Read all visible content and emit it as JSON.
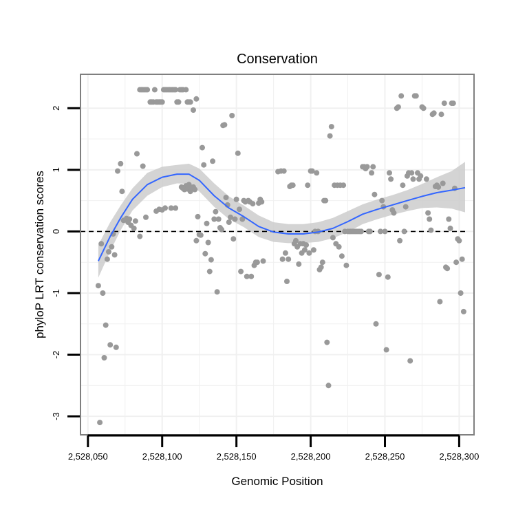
{
  "chart_data": {
    "type": "scatter",
    "title": "Conservation",
    "xlabel": "Genomic Position",
    "ylabel": "phyloP LRT conservation scores",
    "xlim": [
      2528045,
      2528310
    ],
    "ylim": [
      -3.3,
      2.55
    ],
    "x_ticks": [
      {
        "value": 2528050,
        "label": "2,528,050"
      },
      {
        "value": 2528100,
        "label": "2,528,100"
      },
      {
        "value": 2528150,
        "label": "2,528,150"
      },
      {
        "value": 2528200,
        "label": "2,528,200"
      },
      {
        "value": 2528250,
        "label": "2,528,250"
      },
      {
        "value": 2528300,
        "label": "2,528,300"
      }
    ],
    "y_ticks": [
      {
        "value": 2,
        "label": "2"
      },
      {
        "value": 1,
        "label": "1"
      },
      {
        "value": 0,
        "label": "0"
      },
      {
        "value": -1,
        "label": "-1"
      },
      {
        "value": -2,
        "label": "-2"
      },
      {
        "value": -3,
        "label": "-3"
      }
    ],
    "reference_line": {
      "y": 0,
      "style": "dashed"
    },
    "colors": {
      "points": "#999999",
      "smooth": "#3366ff",
      "ribbon": "#cccccc",
      "grid": "#f0f0f0",
      "border": "#7f7f7f"
    },
    "points": [
      [
        2528057,
        -0.88
      ],
      [
        2528058,
        -3.1
      ],
      [
        2528059,
        -0.2
      ],
      [
        2528060,
        -1.0
      ],
      [
        2528061,
        -2.05
      ],
      [
        2528062,
        -1.52
      ],
      [
        2528063,
        -0.45
      ],
      [
        2528064,
        -0.33
      ],
      [
        2528065,
        -1.84
      ],
      [
        2528066,
        -0.25
      ],
      [
        2528067,
        -0.04
      ],
      [
        2528068,
        -0.38
      ],
      [
        2528069,
        -1.88
      ],
      [
        2528070,
        0.98
      ],
      [
        2528072,
        1.1
      ],
      [
        2528073,
        0.65
      ],
      [
        2528074,
        0.18
      ],
      [
        2528076,
        0.21
      ],
      [
        2528077,
        0.15
      ],
      [
        2528078,
        0.2
      ],
      [
        2528079,
        0.1
      ],
      [
        2528081,
        0.05
      ],
      [
        2528082,
        0.17
      ],
      [
        2528083,
        1.26
      ],
      [
        2528085,
        -0.08
      ],
      [
        2528087,
        1.06
      ],
      [
        2528089,
        0.23
      ],
      [
        2528085,
        2.3
      ],
      [
        2528086,
        2.3
      ],
      [
        2528087,
        2.3
      ],
      [
        2528088,
        2.3
      ],
      [
        2528089,
        2.3
      ],
      [
        2528090,
        2.3
      ],
      [
        2528092,
        2.1
      ],
      [
        2528093,
        2.1
      ],
      [
        2528094,
        2.1
      ],
      [
        2528095,
        2.3
      ],
      [
        2528096,
        2.1
      ],
      [
        2528097,
        2.1
      ],
      [
        2528098,
        2.1
      ],
      [
        2528099,
        2.1
      ],
      [
        2528100,
        2.1
      ],
      [
        2528101,
        2.3
      ],
      [
        2528102,
        2.3
      ],
      [
        2528103,
        2.3
      ],
      [
        2528104,
        2.3
      ],
      [
        2528105,
        2.3
      ],
      [
        2528106,
        2.3
      ],
      [
        2528107,
        2.3
      ],
      [
        2528108,
        2.3
      ],
      [
        2528109,
        2.3
      ],
      [
        2528110,
        2.1
      ],
      [
        2528111,
        2.1
      ],
      [
        2528112,
        2.3
      ],
      [
        2528113,
        2.3
      ],
      [
        2528114,
        2.3
      ],
      [
        2528116,
        2.3
      ],
      [
        2528117,
        2.1
      ],
      [
        2528118,
        2.1
      ],
      [
        2528119,
        2.1
      ],
      [
        2528121,
        1.97
      ],
      [
        2528123,
        2.15
      ],
      [
        2528096,
        0.33
      ],
      [
        2528098,
        0.36
      ],
      [
        2528100,
        0.35
      ],
      [
        2528102,
        0.38
      ],
      [
        2528106,
        0.38
      ],
      [
        2528109,
        0.38
      ],
      [
        2528113,
        0.72
      ],
      [
        2528114,
        0.7
      ],
      [
        2528115,
        0.68
      ],
      [
        2528116,
        0.74
      ],
      [
        2528117,
        0.69
      ],
      [
        2528118,
        0.76
      ],
      [
        2528119,
        0.65
      ],
      [
        2528120,
        0.7
      ],
      [
        2528121,
        0.72
      ],
      [
        2528122,
        0.68
      ],
      [
        2528123,
        -0.15
      ],
      [
        2528124,
        0.24
      ],
      [
        2528125,
        -0.05
      ],
      [
        2528126,
        -0.06
      ],
      [
        2528127,
        1.36
      ],
      [
        2528128,
        1.08
      ],
      [
        2528129,
        -0.36
      ],
      [
        2528130,
        0.13
      ],
      [
        2528131,
        -0.18
      ],
      [
        2528132,
        -0.65
      ],
      [
        2528133,
        -0.46
      ],
      [
        2528134,
        1.14
      ],
      [
        2528135,
        0.2
      ],
      [
        2528136,
        0.32
      ],
      [
        2528137,
        -0.98
      ],
      [
        2528138,
        0.2
      ],
      [
        2528139,
        0.06
      ],
      [
        2528140,
        0.03
      ],
      [
        2528141,
        1.72
      ],
      [
        2528142,
        1.73
      ],
      [
        2528143,
        0.55
      ],
      [
        2528144,
        0.43
      ],
      [
        2528145,
        0.15
      ],
      [
        2528146,
        0.23
      ],
      [
        2528147,
        1.88
      ],
      [
        2528148,
        -0.12
      ],
      [
        2528149,
        0.2
      ],
      [
        2528150,
        0.52
      ],
      [
        2528151,
        1.27
      ],
      [
        2528152,
        0.36
      ],
      [
        2528153,
        -0.65
      ],
      [
        2528154,
        0.2
      ],
      [
        2528155,
        0.5
      ],
      [
        2528156,
        0.48
      ],
      [
        2528157,
        -0.73
      ],
      [
        2528158,
        0.5
      ],
      [
        2528159,
        0.48
      ],
      [
        2528160,
        -0.73
      ],
      [
        2528161,
        0.45
      ],
      [
        2528162,
        -0.55
      ],
      [
        2528163,
        -0.5
      ],
      [
        2528164,
        -0.5
      ],
      [
        2528165,
        0.46
      ],
      [
        2528166,
        0.52
      ],
      [
        2528167,
        0.48
      ],
      [
        2528168,
        -0.48
      ],
      [
        2528178,
        0.97
      ],
      [
        2528180,
        0.98
      ],
      [
        2528181,
        -0.45
      ],
      [
        2528182,
        0.98
      ],
      [
        2528183,
        -0.35
      ],
      [
        2528184,
        -0.81
      ],
      [
        2528185,
        -0.45
      ],
      [
        2528186,
        0.73
      ],
      [
        2528187,
        0.75
      ],
      [
        2528188,
        0.75
      ],
      [
        2528189,
        -0.2
      ],
      [
        2528190,
        -0.15
      ],
      [
        2528191,
        -0.25
      ],
      [
        2528192,
        -0.53
      ],
      [
        2528193,
        -0.2
      ],
      [
        2528194,
        -0.35
      ],
      [
        2528195,
        -0.2
      ],
      [
        2528196,
        -0.3
      ],
      [
        2528197,
        -0.22
      ],
      [
        2528198,
        0.75
      ],
      [
        2528199,
        -0.35
      ],
      [
        2528200,
        0.98
      ],
      [
        2528201,
        0.98
      ],
      [
        2528202,
        -0.3
      ],
      [
        2528203,
        0.0
      ],
      [
        2528204,
        0.95
      ],
      [
        2528205,
        0.0
      ],
      [
        2528206,
        -0.62
      ],
      [
        2528207,
        -0.58
      ],
      [
        2528208,
        -0.5
      ],
      [
        2528209,
        0.5
      ],
      [
        2528210,
        0.5
      ],
      [
        2528211,
        -1.8
      ],
      [
        2528212,
        -2.5
      ],
      [
        2528213,
        1.55
      ],
      [
        2528214,
        1.7
      ],
      [
        2528215,
        -0.1
      ],
      [
        2528216,
        0.75
      ],
      [
        2528217,
        -0.2
      ],
      [
        2528218,
        0.75
      ],
      [
        2528219,
        -0.25
      ],
      [
        2528220,
        0.75
      ],
      [
        2528221,
        -0.4
      ],
      [
        2528222,
        0.75
      ],
      [
        2528223,
        0.0
      ],
      [
        2528224,
        -0.55
      ],
      [
        2528225,
        0.0
      ],
      [
        2528226,
        0.0
      ],
      [
        2528227,
        0.0
      ],
      [
        2528228,
        0.0
      ],
      [
        2528229,
        0.0
      ],
      [
        2528230,
        0.0
      ],
      [
        2528231,
        0.0
      ],
      [
        2528232,
        0.0
      ],
      [
        2528233,
        0.0
      ],
      [
        2528234,
        0.0
      ],
      [
        2528235,
        1.05
      ],
      [
        2528236,
        1.05
      ],
      [
        2528237,
        1.02
      ],
      [
        2528238,
        1.05
      ],
      [
        2528239,
        0.0
      ],
      [
        2528240,
        0.0
      ],
      [
        2528241,
        0.95
      ],
      [
        2528242,
        1.05
      ],
      [
        2528243,
        0.6
      ],
      [
        2528244,
        -1.5
      ],
      [
        2528246,
        -0.7
      ],
      [
        2528247,
        0.0
      ],
      [
        2528248,
        0.5
      ],
      [
        2528249,
        0.4
      ],
      [
        2528250,
        0.0
      ],
      [
        2528251,
        -1.92
      ],
      [
        2528252,
        -0.74
      ],
      [
        2528253,
        0.95
      ],
      [
        2528254,
        0.85
      ],
      [
        2528255,
        0.35
      ],
      [
        2528256,
        0.3
      ],
      [
        2528258,
        2.0
      ],
      [
        2528259,
        2.02
      ],
      [
        2528260,
        -0.15
      ],
      [
        2528261,
        2.2
      ],
      [
        2528262,
        0.75
      ],
      [
        2528263,
        0.0
      ],
      [
        2528264,
        0.4
      ],
      [
        2528265,
        0.9
      ],
      [
        2528266,
        0.95
      ],
      [
        2528267,
        -2.1
      ],
      [
        2528268,
        0.95
      ],
      [
        2528269,
        0.85
      ],
      [
        2528270,
        2.2
      ],
      [
        2528271,
        2.2
      ],
      [
        2528272,
        0.95
      ],
      [
        2528273,
        0.85
      ],
      [
        2528274,
        0.9
      ],
      [
        2528275,
        2.02
      ],
      [
        2528276,
        2.0
      ],
      [
        2528278,
        0.85
      ],
      [
        2528279,
        0.3
      ],
      [
        2528280,
        0.2
      ],
      [
        2528281,
        0.02
      ],
      [
        2528282,
        1.9
      ],
      [
        2528283,
        1.92
      ],
      [
        2528284,
        0.73
      ],
      [
        2528285,
        0.75
      ],
      [
        2528286,
        0.72
      ],
      [
        2528287,
        -1.14
      ],
      [
        2528288,
        1.9
      ],
      [
        2528289,
        0.78
      ],
      [
        2528290,
        2.08
      ],
      [
        2528291,
        -0.58
      ],
      [
        2528292,
        -0.6
      ],
      [
        2528293,
        0.2
      ],
      [
        2528294,
        0.05
      ],
      [
        2528295,
        2.08
      ],
      [
        2528296,
        2.08
      ],
      [
        2528297,
        0.7
      ],
      [
        2528298,
        -0.5
      ],
      [
        2528299,
        -0.12
      ],
      [
        2528300,
        -0.15
      ],
      [
        2528301,
        -1.0
      ],
      [
        2528302,
        -0.45
      ],
      [
        2528303,
        -1.3
      ]
    ],
    "smooth_line": [
      [
        2528057,
        -0.48
      ],
      [
        2528065,
        -0.08
      ],
      [
        2528072,
        0.22
      ],
      [
        2528080,
        0.52
      ],
      [
        2528090,
        0.76
      ],
      [
        2528100,
        0.88
      ],
      [
        2528110,
        0.93
      ],
      [
        2528118,
        0.93
      ],
      [
        2528125,
        0.83
      ],
      [
        2528135,
        0.58
      ],
      [
        2528145,
        0.38
      ],
      [
        2528155,
        0.24
      ],
      [
        2528165,
        0.08
      ],
      [
        2528175,
        -0.01
      ],
      [
        2528185,
        -0.04
      ],
      [
        2528195,
        -0.04
      ],
      [
        2528205,
        -0.01
      ],
      [
        2528215,
        0.05
      ],
      [
        2528225,
        0.16
      ],
      [
        2528235,
        0.28
      ],
      [
        2528245,
        0.36
      ],
      [
        2528255,
        0.43
      ],
      [
        2528265,
        0.5
      ],
      [
        2528275,
        0.57
      ],
      [
        2528285,
        0.63
      ],
      [
        2528295,
        0.67
      ],
      [
        2528304,
        0.71
      ]
    ],
    "ribbon_upper": [
      [
        2528057,
        -0.22
      ],
      [
        2528065,
        0.15
      ],
      [
        2528072,
        0.42
      ],
      [
        2528080,
        0.7
      ],
      [
        2528090,
        0.95
      ],
      [
        2528100,
        1.05
      ],
      [
        2528110,
        1.08
      ],
      [
        2528118,
        1.1
      ],
      [
        2528125,
        1.02
      ],
      [
        2528135,
        0.78
      ],
      [
        2528145,
        0.57
      ],
      [
        2528155,
        0.42
      ],
      [
        2528165,
        0.26
      ],
      [
        2528175,
        0.15
      ],
      [
        2528185,
        0.12
      ],
      [
        2528195,
        0.12
      ],
      [
        2528205,
        0.15
      ],
      [
        2528215,
        0.22
      ],
      [
        2528225,
        0.33
      ],
      [
        2528235,
        0.44
      ],
      [
        2528245,
        0.52
      ],
      [
        2528255,
        0.59
      ],
      [
        2528265,
        0.67
      ],
      [
        2528275,
        0.77
      ],
      [
        2528285,
        0.88
      ],
      [
        2528295,
        0.98
      ],
      [
        2528304,
        1.13
      ]
    ],
    "ribbon_lower": [
      [
        2528057,
        -0.75
      ],
      [
        2528065,
        -0.32
      ],
      [
        2528072,
        0.02
      ],
      [
        2528080,
        0.34
      ],
      [
        2528090,
        0.58
      ],
      [
        2528100,
        0.72
      ],
      [
        2528110,
        0.78
      ],
      [
        2528118,
        0.77
      ],
      [
        2528125,
        0.65
      ],
      [
        2528135,
        0.4
      ],
      [
        2528145,
        0.2
      ],
      [
        2528155,
        0.07
      ],
      [
        2528165,
        -0.09
      ],
      [
        2528175,
        -0.17
      ],
      [
        2528185,
        -0.19
      ],
      [
        2528195,
        -0.19
      ],
      [
        2528205,
        -0.17
      ],
      [
        2528215,
        -0.11
      ],
      [
        2528225,
        -0.01
      ],
      [
        2528235,
        0.12
      ],
      [
        2528245,
        0.2
      ],
      [
        2528255,
        0.27
      ],
      [
        2528265,
        0.33
      ],
      [
        2528275,
        0.38
      ],
      [
        2528285,
        0.39
      ],
      [
        2528295,
        0.37
      ],
      [
        2528304,
        0.31
      ]
    ]
  }
}
